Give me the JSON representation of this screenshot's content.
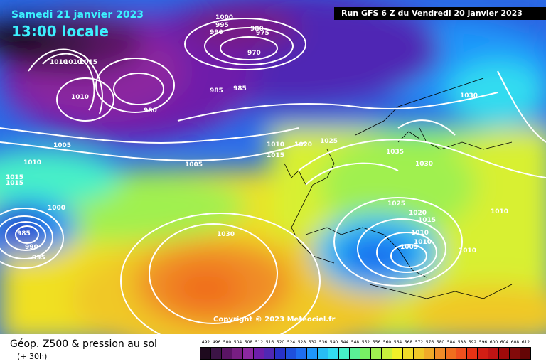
{
  "header": {
    "date": "Samedi 21 janvier 2023",
    "time": "13:00 locale",
    "run": "Run GFS 6 Z du Vendredi 20 janvier 2023"
  },
  "copyright": "Copyright © 2023 Meteociel.fr",
  "footer": {
    "title": "Géop. Z500 & pression au sol",
    "subtitle": "(+ 30h)"
  },
  "legend": {
    "labels": [
      "492",
      "496",
      "500",
      "504",
      "508",
      "512",
      "516",
      "520",
      "524",
      "528",
      "532",
      "536",
      "540",
      "544",
      "548",
      "552",
      "556",
      "560",
      "564",
      "568",
      "572",
      "576",
      "580",
      "584",
      "588",
      "592",
      "596",
      "600",
      "604",
      "608",
      "612"
    ],
    "colors": [
      "#1e0a1e",
      "#3c1446",
      "#5a1464",
      "#781e82",
      "#8c28a0",
      "#6e1eaa",
      "#5028b4",
      "#2832c8",
      "#1e50dc",
      "#1e6ef0",
      "#1e96fa",
      "#28bef5",
      "#32dcf0",
      "#46f0c8",
      "#5af096",
      "#78f064",
      "#a0f050",
      "#c8f03c",
      "#f0f028",
      "#f0dc28",
      "#f0c828",
      "#f0aa28",
      "#f08c28",
      "#f06e1e",
      "#f0501e",
      "#e63214",
      "#d21e14",
      "#be1414",
      "#a00a0a",
      "#820a0a",
      "#640505"
    ]
  },
  "isobars": [
    "1000",
    "995",
    "990",
    "980",
    "975",
    "970",
    "1010",
    "1010",
    "1015",
    "985",
    "985",
    "980",
    "1010",
    "1005",
    "1010",
    "1015",
    "1000",
    "985",
    "990",
    "995",
    "1010",
    "1015",
    "1020",
    "1025",
    "1005",
    "1030",
    "1035",
    "1030",
    "1025",
    "1020",
    "1015",
    "1010",
    "1010",
    "1005",
    "1010",
    "1030",
    "1015",
    "1010"
  ]
}
